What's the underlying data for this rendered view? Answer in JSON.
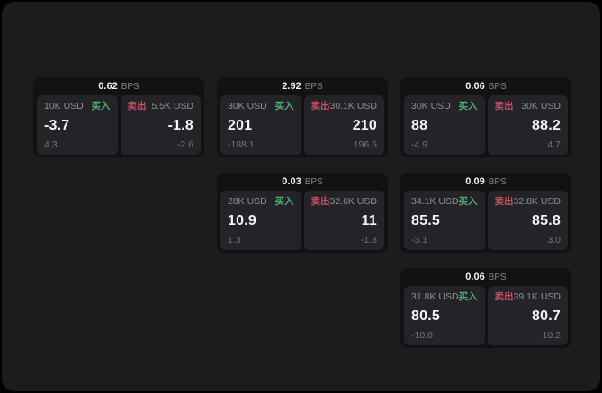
{
  "labels": {
    "bps_unit": "BPS",
    "buy": "买入",
    "sell": "卖出"
  },
  "colors": {
    "buy_accent": "#4cae70",
    "sell_accent": "#c05064",
    "surface_bg": "#1c1c1e",
    "card_bg": "#121214",
    "panel_bg": "#242428"
  },
  "cards": [
    {
      "bps": "0.62",
      "buy": {
        "amount": "10K USD",
        "price": "-3.7",
        "delta": "4.3"
      },
      "sell": {
        "amount": "5.5K USD",
        "price": "-1.8",
        "delta": "-2.6"
      }
    },
    {
      "bps": "2.92",
      "buy": {
        "amount": "30K USD",
        "price": "201",
        "delta": "-188.1"
      },
      "sell": {
        "amount": "30.1K USD",
        "price": "210",
        "delta": "196.5"
      }
    },
    {
      "bps": "0.06",
      "buy": {
        "amount": "30K USD",
        "price": "88",
        "delta": "-4.9"
      },
      "sell": {
        "amount": "30K USD",
        "price": "88.2",
        "delta": "4.7"
      }
    },
    {
      "bps": "0.03",
      "buy": {
        "amount": "28K USD",
        "price": "10.9",
        "delta": "1.3"
      },
      "sell": {
        "amount": "32.6K USD",
        "price": "11",
        "delta": "-1.8"
      }
    },
    {
      "bps": "0.09",
      "buy": {
        "amount": "34.1K USD",
        "price": "85.5",
        "delta": "-3.1"
      },
      "sell": {
        "amount": "32.8K USD",
        "price": "85.8",
        "delta": "3.0"
      }
    },
    {
      "bps": "0.06",
      "buy": {
        "amount": "31.8K USD",
        "price": "80.5",
        "delta": "-10.8"
      },
      "sell": {
        "amount": "39.1K USD",
        "price": "80.7",
        "delta": "10.2"
      }
    }
  ]
}
